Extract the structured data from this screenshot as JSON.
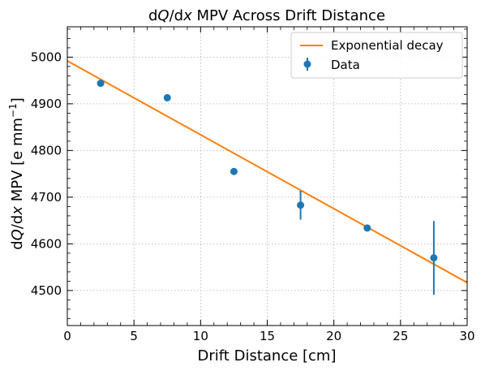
{
  "chart_data": {
    "type": "scatter",
    "title": {
      "pre": "d",
      "q": "Q",
      "slash": "/d",
      "x": "x",
      "post": " MPV Across Drift Distance"
    },
    "xlabel": "Drift Distance [cm]",
    "ylabel": {
      "pre": "d",
      "q": "Q",
      "slash": "/d",
      "x": "x",
      "mid": " MPV [e mm",
      "sup": "−1",
      "post": "]"
    },
    "xlim": [
      0,
      30
    ],
    "ylim": [
      4425,
      5065
    ],
    "xticks": [
      0,
      5,
      10,
      15,
      20,
      25,
      30
    ],
    "xtick_labels": [
      "0",
      "5",
      "10",
      "15",
      "20",
      "25",
      "30"
    ],
    "yticks": [
      4500,
      4600,
      4700,
      4800,
      4900,
      5000
    ],
    "ytick_labels": [
      "4500",
      "4600",
      "4700",
      "4800",
      "4900",
      "5000"
    ],
    "grid": true,
    "legend_position": "top-right",
    "series": [
      {
        "name": "Data",
        "kind": "errorbar",
        "color": "#1f77b4",
        "x": [
          2.5,
          7.5,
          12.5,
          17.5,
          22.5,
          27.5
        ],
        "y": [
          4944,
          4913,
          4755,
          4683,
          4634,
          4570
        ],
        "yerr": [
          3,
          3,
          3,
          31,
          3,
          79
        ]
      },
      {
        "name": "Exponential decay",
        "kind": "line",
        "color": "#ff7f0e",
        "x": [
          0,
          30
        ],
        "y": [
          4992,
          4517
        ]
      }
    ]
  }
}
